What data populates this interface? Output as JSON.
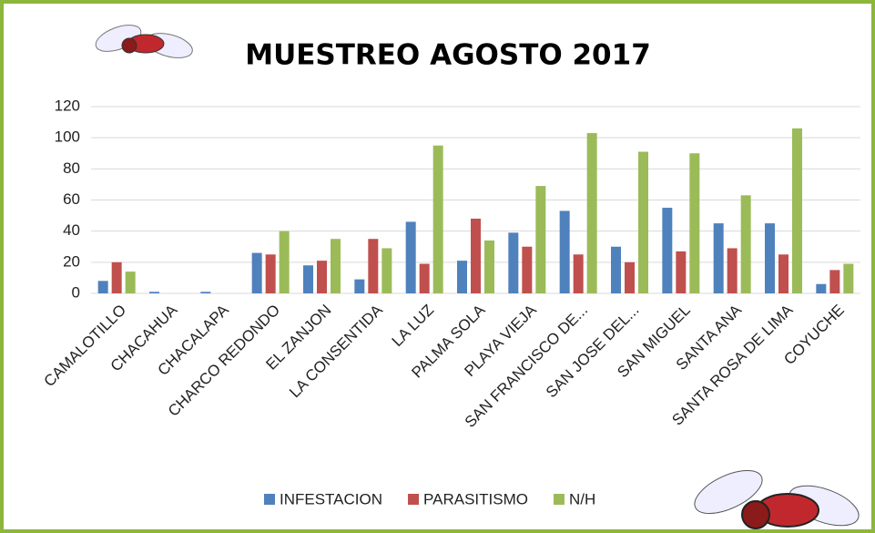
{
  "chart_data": {
    "type": "bar",
    "title": "MUESTREO AGOSTO 2017",
    "categories": [
      "CAMALOTILLO",
      "CHACAHUA",
      "CHACALAPA",
      "CHARCO REDONDO",
      "EL ZANJON",
      "LA CONSENTIDA",
      "LA LUZ",
      "PALMA SOLA",
      "PLAYA VIEJA",
      "SAN FRANCISCO DE...",
      "SAN JOSE DEL...",
      "SAN MIGUEL",
      "SANTA ANA",
      "SANTA ROSA DE LIMA",
      "COYUCHE"
    ],
    "series": [
      {
        "name": "INFESTACION",
        "color": "#4f81bd",
        "values": [
          8,
          1,
          1,
          26,
          18,
          9,
          46,
          21,
          39,
          53,
          30,
          55,
          45,
          45,
          6
        ]
      },
      {
        "name": "PARASITISMO",
        "color": "#c0504d",
        "values": [
          20,
          0,
          0,
          25,
          21,
          35,
          19,
          48,
          30,
          25,
          20,
          27,
          29,
          25,
          15
        ]
      },
      {
        "name": "N/H",
        "color": "#9bbb59",
        "values": [
          14,
          0,
          0,
          40,
          35,
          29,
          95,
          34,
          69,
          103,
          91,
          90,
          63,
          106,
          19
        ]
      }
    ],
    "ylim": [
      0,
      120
    ],
    "yticks": [
      0,
      20,
      40,
      60,
      80,
      100,
      120
    ],
    "grid": true,
    "legend": "bottom"
  }
}
